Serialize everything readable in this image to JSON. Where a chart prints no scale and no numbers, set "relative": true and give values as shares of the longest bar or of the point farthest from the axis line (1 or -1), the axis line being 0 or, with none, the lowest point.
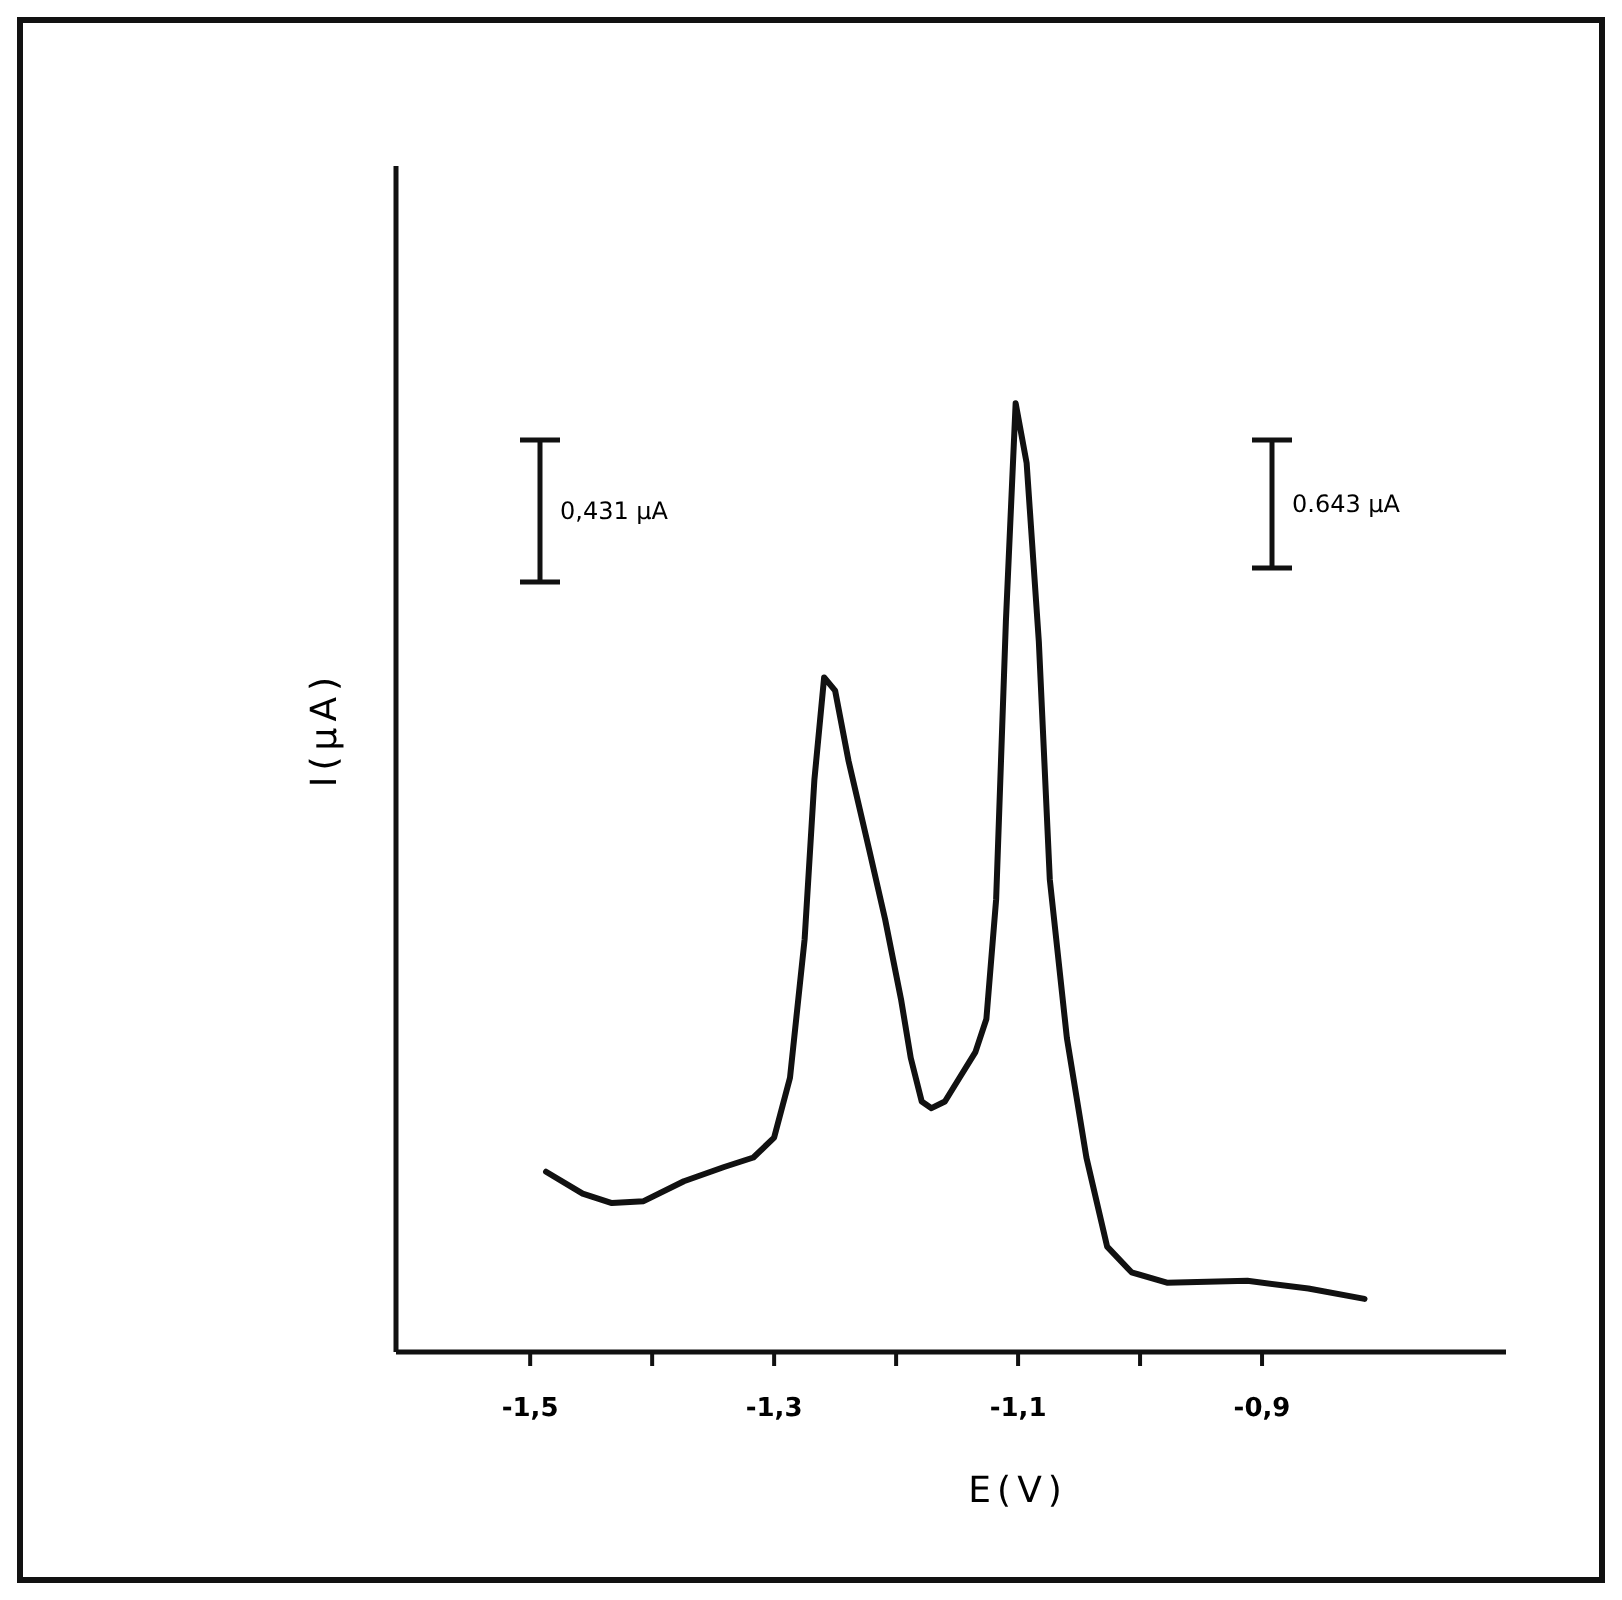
{
  "chart_data": {
    "type": "line",
    "xlabel": "E(V)",
    "ylabel": "I(μA)",
    "relative": true,
    "tick_labels": "x",
    "grid": false,
    "marker": "none",
    "line_style": "solid",
    "xlim": [
      -1.61,
      -0.7
    ],
    "xticks": [
      {
        "value": -1.5,
        "label": "-1,5"
      },
      {
        "value": -1.4,
        "label": null
      },
      {
        "value": -1.3,
        "label": "-1,3"
      },
      {
        "value": -1.2,
        "label": null
      },
      {
        "value": -1.1,
        "label": "-1,1"
      },
      {
        "value": -1.0,
        "label": null
      },
      {
        "value": -0.9,
        "label": "-0,9"
      }
    ],
    "annotations": [
      "0,431 μA",
      "0.643 μA"
    ],
    "series": [
      {
        "color": "#111111",
        "x": [
          -1.487,
          -1.457,
          -1.433,
          -1.407,
          -1.374,
          -1.341,
          -1.317,
          -1.3,
          -1.287,
          -1.275,
          -1.267,
          -1.259,
          -1.25,
          -1.239,
          -1.222,
          -1.209,
          -1.196,
          -1.188,
          -1.179,
          -1.171,
          -1.16,
          -1.148,
          -1.135,
          -1.126,
          -1.118,
          -1.11,
          -1.102,
          -1.093,
          -1.083,
          -1.074,
          -1.06,
          -1.044,
          -1.027,
          -1.007,
          -0.978,
          -0.912,
          -0.862,
          -0.816
        ],
        "values": [
          0.19,
          0.167,
          0.157,
          0.159,
          0.18,
          0.195,
          0.205,
          0.226,
          0.289,
          0.435,
          0.603,
          0.711,
          0.697,
          0.623,
          0.529,
          0.456,
          0.372,
          0.31,
          0.264,
          0.257,
          0.264,
          0.289,
          0.316,
          0.351,
          0.477,
          0.77,
          1,
          0.937,
          0.749,
          0.498,
          0.331,
          0.205,
          0.111,
          0.084,
          0.073,
          0.075,
          0.067,
          0.056
        ]
      }
    ]
  }
}
